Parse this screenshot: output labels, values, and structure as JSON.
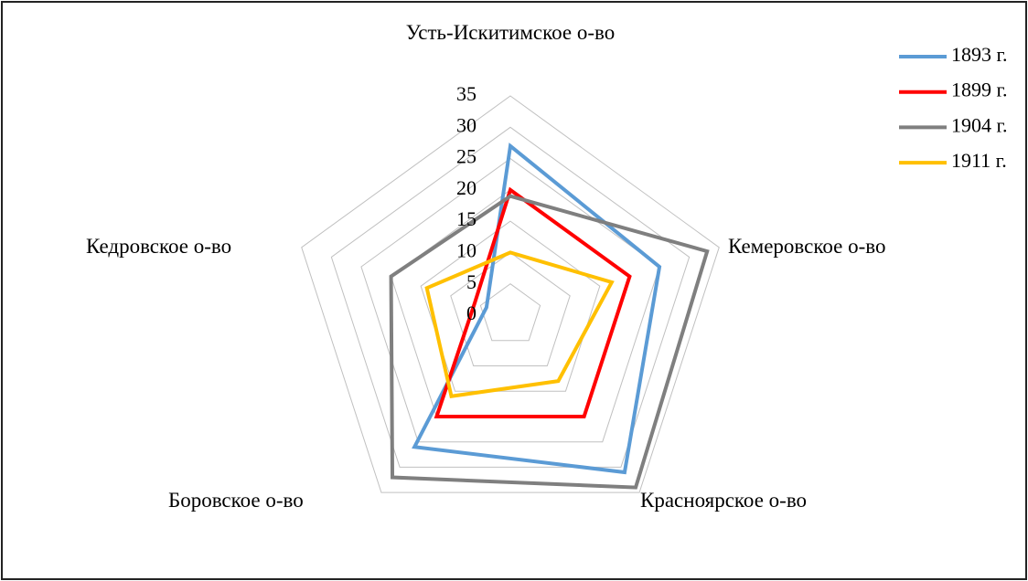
{
  "chart_data": {
    "type": "radar",
    "categories": [
      "Усть-Искитимское о-во",
      "Кемеровское о-во",
      "Красноярское о-во",
      "Боровское о-во",
      "Кедровское о-во"
    ],
    "series": [
      {
        "name": "1893 г.",
        "color": "#5b9bd5",
        "values": [
          27,
          25,
          31,
          26,
          4
        ]
      },
      {
        "name": "1899 г.",
        "color": "#ff0000",
        "values": [
          20,
          20,
          20,
          20,
          6
        ]
      },
      {
        "name": "1904 г.",
        "color": "#7f7f7f",
        "values": [
          19,
          33,
          34,
          32,
          20
        ]
      },
      {
        "name": "1911 г.",
        "color": "#ffc000",
        "values": [
          10,
          17,
          13,
          16,
          14
        ]
      }
    ],
    "rlim": [
      0,
      35
    ],
    "rticks": [
      0,
      5,
      10,
      15,
      20,
      25,
      30,
      35
    ],
    "grid": true,
    "legend": "top-right"
  }
}
